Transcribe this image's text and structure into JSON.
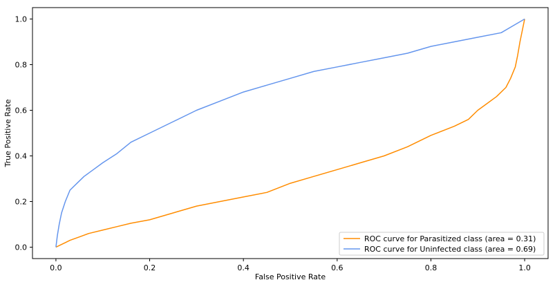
{
  "chart_data": {
    "type": "line",
    "title": "",
    "xlabel": "False Positive Rate",
    "ylabel": "True Positive Rate",
    "xlim": [
      -0.05,
      1.05
    ],
    "ylim": [
      -0.05,
      1.05
    ],
    "xticks": [
      "0.0",
      "0.2",
      "0.4",
      "0.6",
      "0.8",
      "1.0"
    ],
    "yticks": [
      "0.0",
      "0.2",
      "0.4",
      "0.6",
      "0.8",
      "1.0"
    ],
    "grid": false,
    "legend_position": "lower-right",
    "series": [
      {
        "name": "ROC curve for Parasitized class (area = 0.31)",
        "color": "#ff8c00",
        "x": [
          0.0,
          0.01,
          0.02,
          0.03,
          0.05,
          0.07,
          0.1,
          0.13,
          0.16,
          0.2,
          0.25,
          0.3,
          0.35,
          0.4,
          0.45,
          0.5,
          0.55,
          0.6,
          0.65,
          0.7,
          0.75,
          0.8,
          0.85,
          0.88,
          0.9,
          0.92,
          0.94,
          0.96,
          0.97,
          0.98,
          0.985,
          0.99,
          0.995,
          1.0
        ],
        "y": [
          0.0,
          0.01,
          0.02,
          0.03,
          0.045,
          0.06,
          0.075,
          0.09,
          0.105,
          0.12,
          0.15,
          0.18,
          0.2,
          0.22,
          0.24,
          0.28,
          0.31,
          0.34,
          0.37,
          0.4,
          0.44,
          0.49,
          0.53,
          0.56,
          0.6,
          0.63,
          0.66,
          0.7,
          0.74,
          0.79,
          0.84,
          0.9,
          0.95,
          1.0
        ]
      },
      {
        "name": "ROC curve for Uninfected class (area = 0.69)",
        "color": "#6495ed",
        "x": [
          0.0,
          0.003,
          0.007,
          0.012,
          0.02,
          0.03,
          0.045,
          0.06,
          0.08,
          0.1,
          0.13,
          0.16,
          0.2,
          0.25,
          0.3,
          0.35,
          0.4,
          0.45,
          0.5,
          0.55,
          0.6,
          0.65,
          0.7,
          0.75,
          0.8,
          0.85,
          0.9,
          0.95,
          0.975,
          1.0
        ],
        "y": [
          0.0,
          0.05,
          0.1,
          0.15,
          0.2,
          0.25,
          0.28,
          0.31,
          0.34,
          0.37,
          0.41,
          0.46,
          0.5,
          0.55,
          0.6,
          0.64,
          0.68,
          0.71,
          0.74,
          0.77,
          0.79,
          0.81,
          0.83,
          0.85,
          0.88,
          0.9,
          0.92,
          0.94,
          0.97,
          1.0
        ]
      }
    ]
  }
}
